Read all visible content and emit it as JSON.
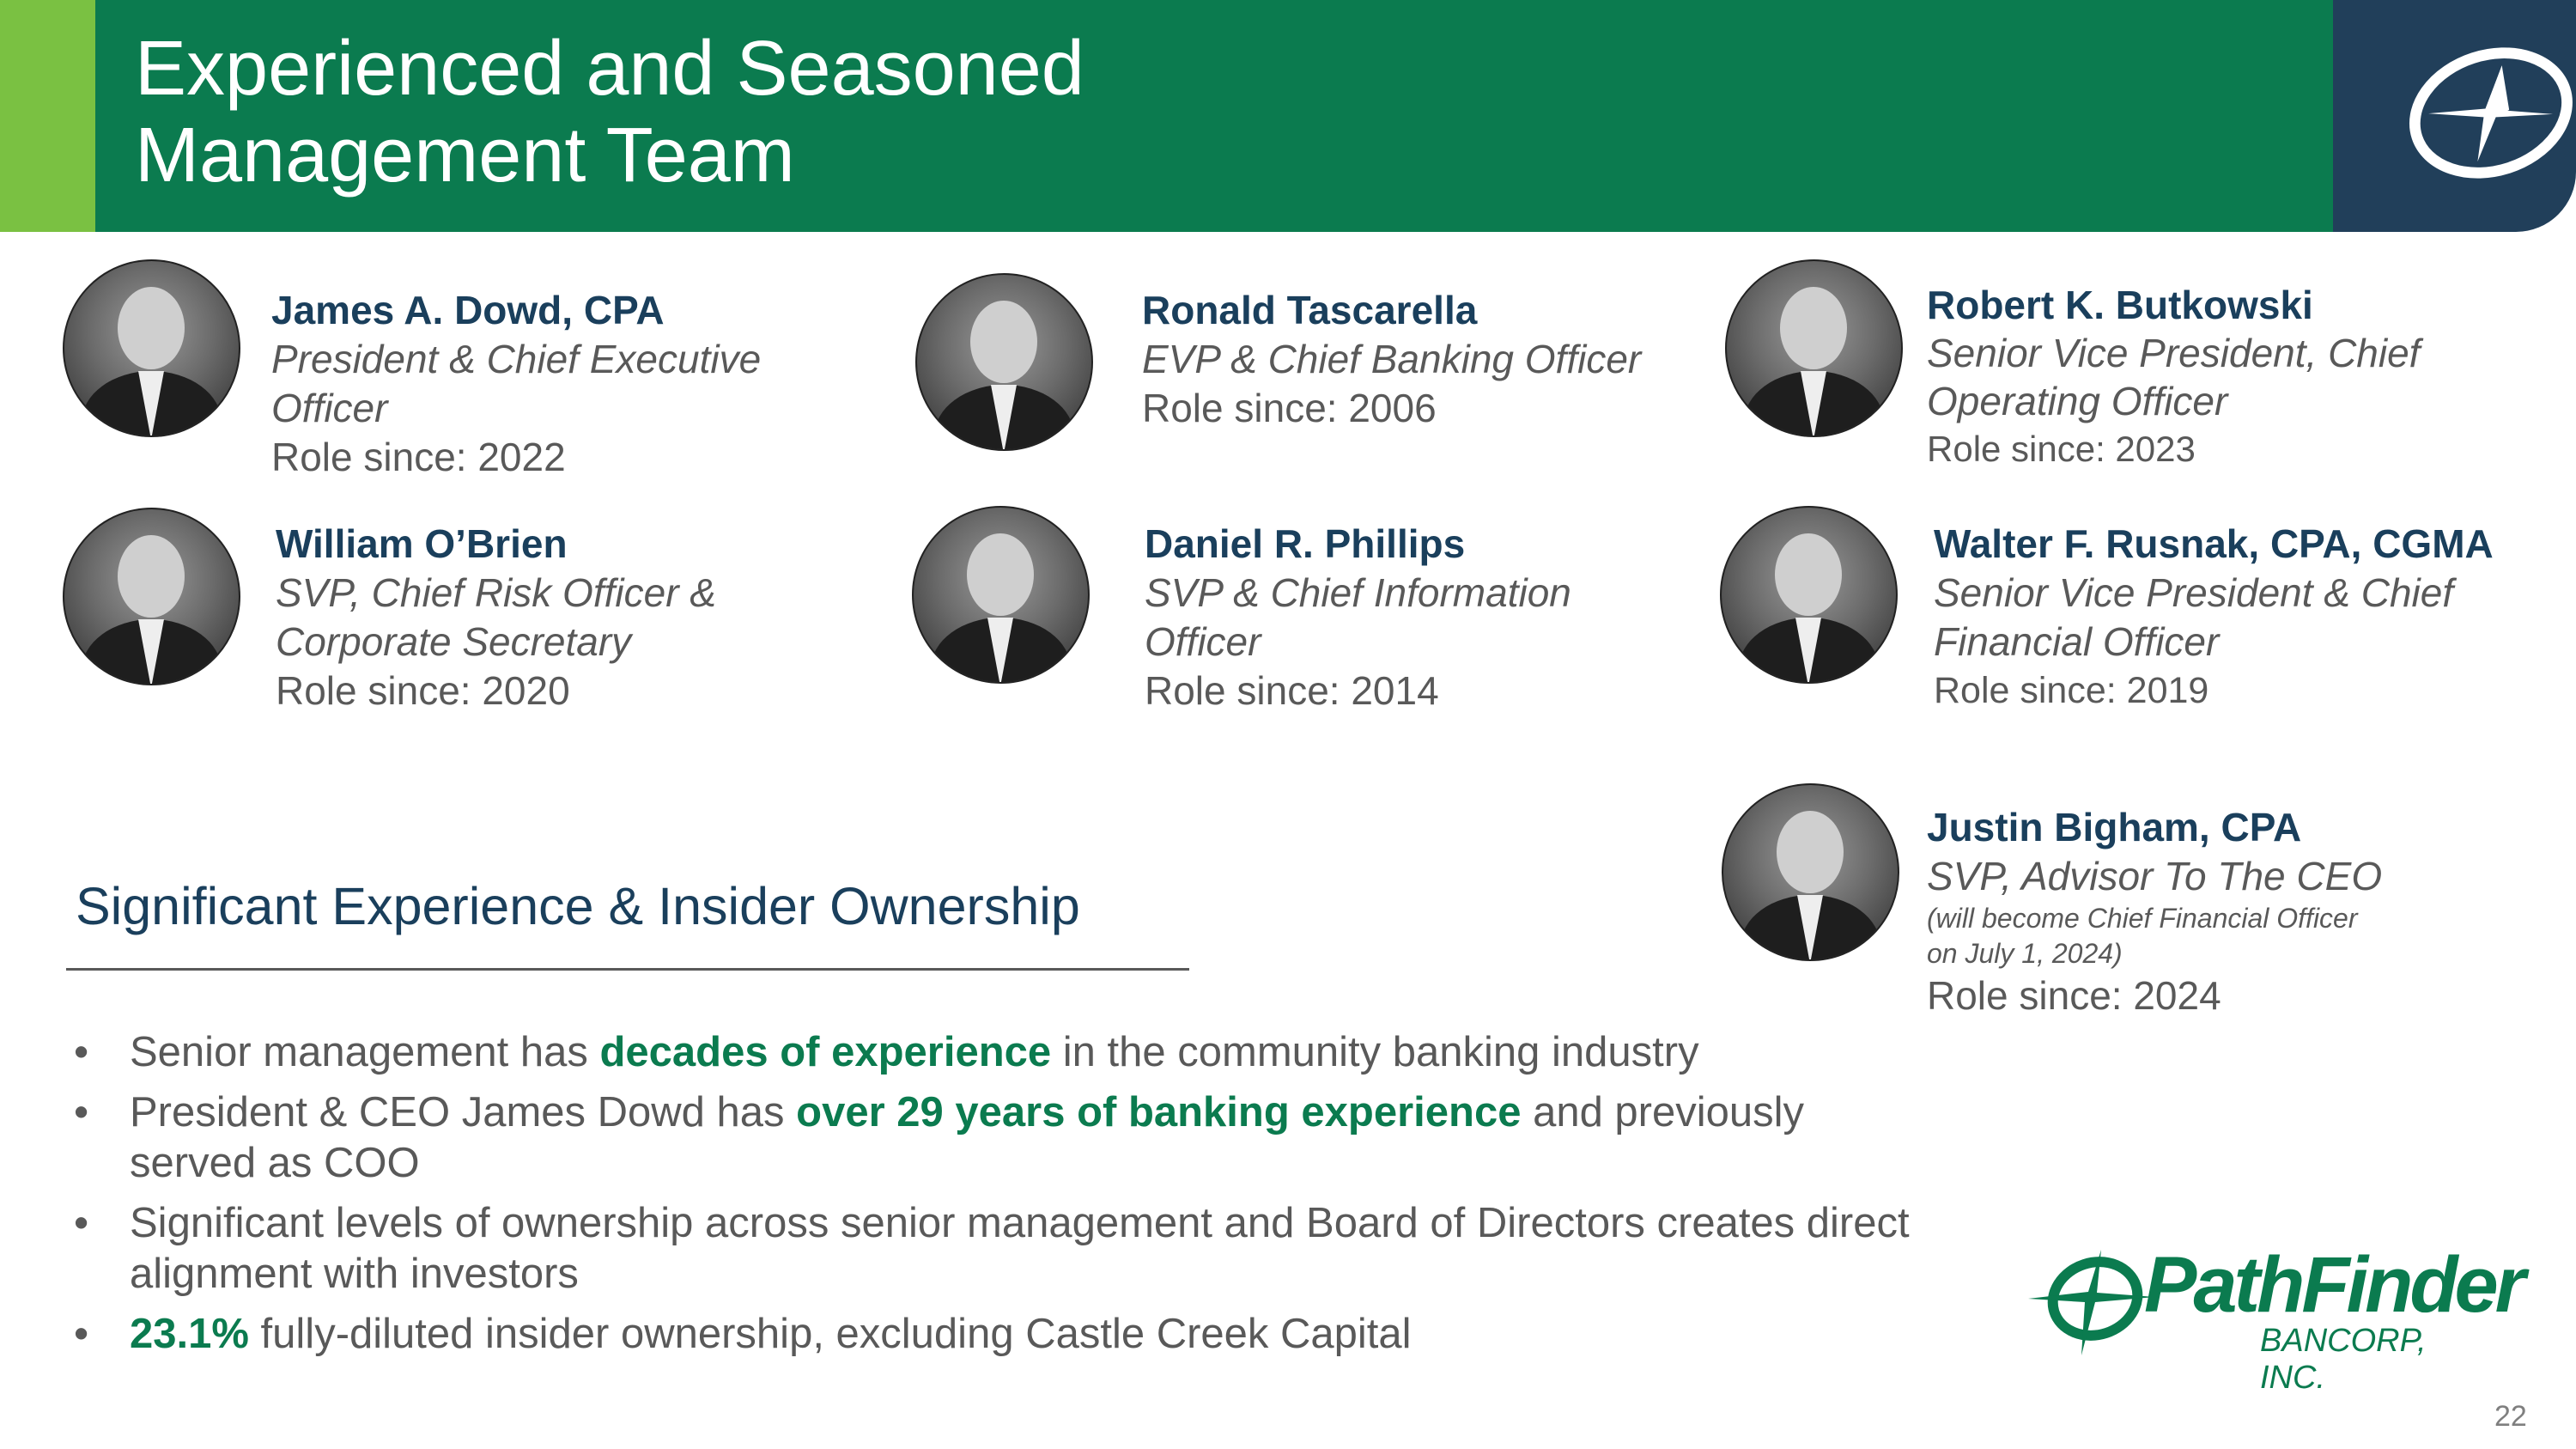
{
  "header": {
    "title_line1": "Experienced and Seasoned",
    "title_line2": "Management Team",
    "colors": {
      "accent_light": "#7ac142",
      "brand_green": "#0b7b4f",
      "navy": "#213f5a"
    }
  },
  "team": [
    {
      "name": "James A. Dowd, CPA",
      "title_lines": [
        "President & Chief Executive",
        "Officer"
      ],
      "role_since": "Role since: 2022"
    },
    {
      "name": "Ronald Tascarella",
      "title_lines": [
        "EVP & Chief Banking Officer"
      ],
      "role_since": "Role since: 2006"
    },
    {
      "name": "Robert K. Butkowski",
      "title_lines": [
        "Senior Vice President, Chief",
        "Operating Officer"
      ],
      "role_since": "Role since: 2023"
    },
    {
      "name": "William O’Brien",
      "title_lines": [
        "SVP, Chief Risk Officer &",
        "Corporate Secretary"
      ],
      "role_since": "Role since: 2020"
    },
    {
      "name": "Daniel R. Phillips",
      "title_lines": [
        "SVP & Chief Information",
        "Officer"
      ],
      "role_since": "Role since: 2014"
    },
    {
      "name": "Walter F. Rusnak, CPA, CGMA",
      "title_lines": [
        "Senior Vice President & Chief",
        "Financial Officer"
      ],
      "role_since": "Role since: 2019"
    },
    {
      "name": "Justin Bigham, CPA",
      "title_lines": [
        "SVP, Advisor To The CEO"
      ],
      "note_lines": [
        "(will become Chief Financial Officer",
        "on July 1, 2024)"
      ],
      "role_since": "Role since: 2024"
    }
  ],
  "section": {
    "heading": "Significant Experience & Insider Ownership",
    "bullets": [
      {
        "pre": "Senior management has ",
        "highlight": "decades of experience",
        "post": " in the community banking industry"
      },
      {
        "pre": "President & CEO James Dowd has ",
        "highlight": "over 29 years of banking experience",
        "post": " and previously served as COO"
      },
      {
        "pre": "Significant levels of ownership across senior management and Board of Directors creates direct alignment with investors",
        "highlight": "",
        "post": ""
      },
      {
        "pre": "",
        "highlight": "23.1%",
        "post": " fully-diluted insider ownership, excluding Castle Creek Capital"
      }
    ]
  },
  "logo": {
    "name": "PathFinder",
    "sub": "BANCORP, INC."
  },
  "page_number": "22"
}
